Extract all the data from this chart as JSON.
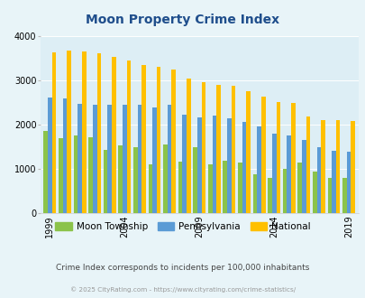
{
  "title": "Moon Property Crime Index",
  "years": [
    1999,
    2000,
    2001,
    2002,
    2003,
    2004,
    2005,
    2006,
    2007,
    2008,
    2009,
    2010,
    2011,
    2012,
    2013,
    2014,
    2015,
    2016,
    2017,
    2018,
    2019
  ],
  "moon": [
    1850,
    1700,
    1760,
    1720,
    1430,
    1520,
    1480,
    1090,
    1550,
    1160,
    1480,
    1100,
    1190,
    1140,
    880,
    800,
    1000,
    1130,
    940,
    790,
    790
  ],
  "pennsylvania": [
    2600,
    2580,
    2470,
    2450,
    2440,
    2440,
    2450,
    2390,
    2440,
    2220,
    2150,
    2200,
    2140,
    2050,
    1950,
    1800,
    1750,
    1640,
    1490,
    1400,
    1390
  ],
  "national": [
    3620,
    3660,
    3640,
    3600,
    3520,
    3440,
    3340,
    3300,
    3230,
    3040,
    2950,
    2900,
    2880,
    2750,
    2620,
    2510,
    2490,
    2180,
    2100,
    2100,
    2070
  ],
  "moon_color": "#8bc34a",
  "pa_color": "#5b9bd5",
  "national_color": "#ffc000",
  "bg_color": "#e8f4f8",
  "plot_bg": "#ddeef5",
  "title_color": "#1f4e8c",
  "ylim": [
    0,
    4000
  ],
  "yticks": [
    0,
    1000,
    2000,
    3000,
    4000
  ],
  "xlabel_ticks": [
    1999,
    2004,
    2009,
    2014,
    2019
  ],
  "subtitle": "Crime Index corresponds to incidents per 100,000 inhabitants",
  "footer": "© 2025 CityRating.com - https://www.cityrating.com/crime-statistics/",
  "subtitle_color": "#444444",
  "footer_color": "#999999",
  "legend_labels": [
    "Moon Township",
    "Pennsylvania",
    "National"
  ]
}
